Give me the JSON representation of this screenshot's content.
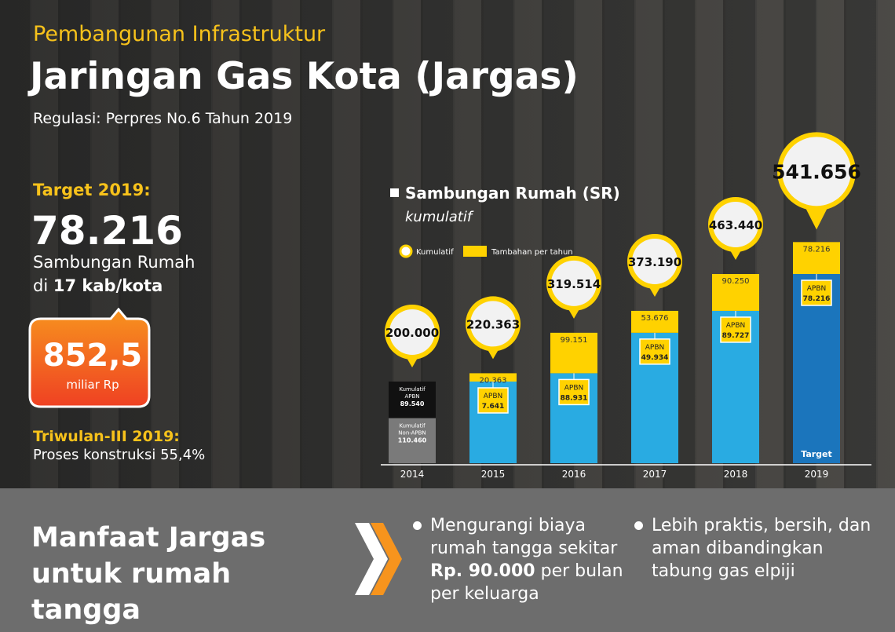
{
  "header": {
    "kicker": "Pembangunan Infrastruktur",
    "title": "Jaringan Gas Kota (Jargas)",
    "subtitle": "Regulasi: Perpres No.6 Tahun 2019"
  },
  "target": {
    "label": "Target 2019:",
    "value": "78.216",
    "unit": "Sambungan Rumah",
    "location": [
      "di",
      "17 kab/kota"
    ]
  },
  "budget": {
    "value": "852,5",
    "unit": "miliar Rp"
  },
  "progress": {
    "label": "Triwulan-III 2019:",
    "text": "Proses konstruksi 55,4%"
  },
  "benefits": {
    "title": "Manfaat Jargas untuk rumah tangga",
    "items": [
      [
        "Mengurangi biaya rumah tangga sekitar",
        "Rp. 90.000",
        "per bulan per keluarga"
      ],
      [
        "Lebih praktis, bersih, dan aman dibandingkan tabung gas elpiji"
      ]
    ]
  },
  "chart_data": {
    "type": "bar",
    "title": "Sambungan Rumah (SR)",
    "subtitle": "kumulatif",
    "categories": [
      "2014",
      "2015",
      "2016",
      "2017",
      "2018",
      "2019"
    ],
    "series": [
      {
        "name": "Kumulatif",
        "color": "#ffd200",
        "values": [
          200000,
          220363,
          319514,
          373190,
          463440,
          541656
        ],
        "value_labels": [
          "200.000",
          "220.363",
          "319.514",
          "373.190",
          "463.440",
          "541.656"
        ]
      },
      {
        "name": "Tambahan per tahun",
        "color": "#ffd200",
        "values": [
          null,
          20363,
          99151,
          53676,
          90250,
          78216
        ],
        "value_labels": [
          null,
          "20.363",
          "99.151",
          "53.676",
          "90.250",
          "78.216"
        ]
      }
    ],
    "apbn": {
      "label": "APBN",
      "values": [
        null,
        7641,
        88931,
        49934,
        89727,
        78216
      ],
      "value_labels": [
        null,
        "7.641",
        "88.931",
        "49.934",
        "89.727",
        "78.216"
      ]
    },
    "base_2014": [
      {
        "lines": [
          "Kumulatif",
          "Non-APBN"
        ],
        "value": 110460,
        "value_label": "110.460",
        "color": "#7a7a7a"
      },
      {
        "lines": [
          "Kumulatif",
          "APBN"
        ],
        "value": 89540,
        "value_label": "89.540",
        "color": "#111111"
      }
    ],
    "base_color": "#29abe2",
    "highlight_color": "#1b75bc",
    "target_label": "Target"
  }
}
